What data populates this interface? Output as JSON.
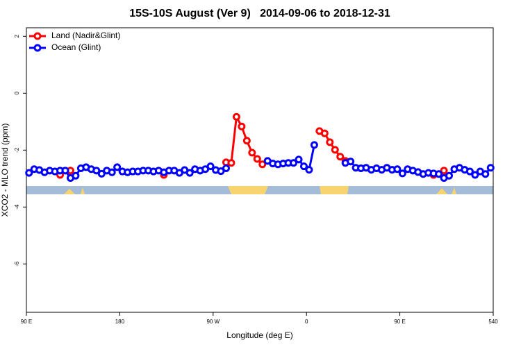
{
  "chart_data": {
    "type": "line",
    "title": "15S-10S August (Ver 9)   2014-09-06 to 2018-12-31",
    "x_label": "Longitude (deg E)",
    "y_label": "XCO2 - MLO trend (ppm)",
    "xlim": [
      90,
      540
    ],
    "ylim": [
      -7.7,
      2.3
    ],
    "xticks": [
      {
        "value": 90,
        "label": "90 E"
      },
      180,
      {
        "value": 270,
        "label": "90 W"
      },
      {
        "value": 360,
        "label": "0"
      },
      {
        "value": 450,
        "label": "90 E"
      },
      540
    ],
    "yticks": [
      -6,
      -4,
      -2,
      0,
      2
    ],
    "legend": "topleft",
    "x": [
      92.5,
      97.5,
      102.5,
      107.5,
      112.5,
      117.5,
      122.5,
      127.5,
      132.5,
      137.5,
      142.5,
      147.5,
      152.5,
      157.5,
      162.5,
      167.5,
      172.5,
      177.5,
      182.5,
      187.5,
      192.5,
      197.5,
      202.5,
      207.5,
      212.5,
      217.5,
      222.5,
      227.5,
      232.5,
      237.5,
      242.5,
      247.5,
      252.5,
      257.5,
      262.5,
      267.5,
      272.5,
      277.5,
      282.5,
      287.5,
      292.5,
      297.5,
      302.5,
      307.5,
      312.5,
      317.5,
      322.5,
      327.5,
      332.5,
      337.5,
      342.5,
      347.5,
      352.5,
      357.5,
      362.5,
      367.5,
      372.5,
      377.5,
      382.5,
      387.5,
      392.5,
      397.5,
      402.5,
      407.5,
      412.5,
      417.5,
      422.5,
      427.5,
      432.5,
      437.5,
      442.5,
      447.5,
      452.5,
      457.5,
      462.5,
      467.5,
      472.5,
      477.5,
      482.5,
      487.5,
      492.5,
      497.5,
      502.5,
      507.5,
      512.5,
      517.5,
      522.5,
      527.5,
      532.5,
      537.5
    ],
    "series": [
      {
        "name": "Land (Nadir&Glint)",
        "color": "#ff0000",
        "values": [
          null,
          null,
          null,
          null,
          null,
          null,
          -2.87,
          null,
          -2.72,
          null,
          null,
          null,
          null,
          null,
          null,
          null,
          null,
          null,
          null,
          null,
          null,
          null,
          null,
          null,
          null,
          null,
          -2.87,
          null,
          null,
          null,
          null,
          null,
          null,
          null,
          null,
          null,
          null,
          null,
          -2.43,
          -2.45,
          -0.83,
          -1.17,
          -1.67,
          -2.09,
          -2.31,
          -2.5,
          null,
          null,
          null,
          null,
          null,
          null,
          null,
          null,
          null,
          null,
          -1.33,
          -1.41,
          -1.72,
          -1.99,
          -2.23,
          -2.38,
          null,
          null,
          null,
          null,
          null,
          null,
          null,
          null,
          null,
          null,
          null,
          null,
          null,
          null,
          null,
          null,
          -2.87,
          null,
          -2.72,
          null,
          null,
          null,
          null,
          null,
          null,
          null,
          null,
          null
        ]
      },
      {
        "name": "Ocean (Glint)",
        "color": "#0000ff",
        "values": [
          -2.8,
          -2.67,
          -2.7,
          -2.78,
          -2.72,
          -2.75,
          -2.72,
          -2.72,
          -2.98,
          -2.9,
          -2.64,
          -2.6,
          -2.67,
          -2.72,
          -2.83,
          -2.72,
          -2.78,
          -2.6,
          -2.75,
          -2.78,
          -2.75,
          -2.75,
          -2.72,
          -2.72,
          -2.75,
          -2.72,
          -2.78,
          -2.72,
          -2.72,
          -2.8,
          -2.7,
          -2.8,
          -2.67,
          -2.72,
          -2.67,
          -2.57,
          -2.7,
          -2.74,
          -2.64,
          null,
          null,
          null,
          null,
          null,
          null,
          null,
          -2.38,
          -2.47,
          -2.5,
          -2.47,
          -2.45,
          -2.45,
          -2.33,
          -2.57,
          -2.69,
          -1.82,
          null,
          null,
          null,
          null,
          null,
          -2.45,
          -2.4,
          -2.62,
          -2.64,
          -2.62,
          -2.69,
          -2.64,
          -2.69,
          -2.62,
          -2.69,
          -2.67,
          -2.82,
          -2.67,
          -2.72,
          -2.77,
          -2.84,
          -2.8,
          -2.82,
          -2.84,
          -2.98,
          -2.9,
          -2.67,
          -2.62,
          -2.69,
          -2.75,
          -2.87,
          -2.75,
          -2.84,
          -2.62
        ]
      }
    ]
  }
}
